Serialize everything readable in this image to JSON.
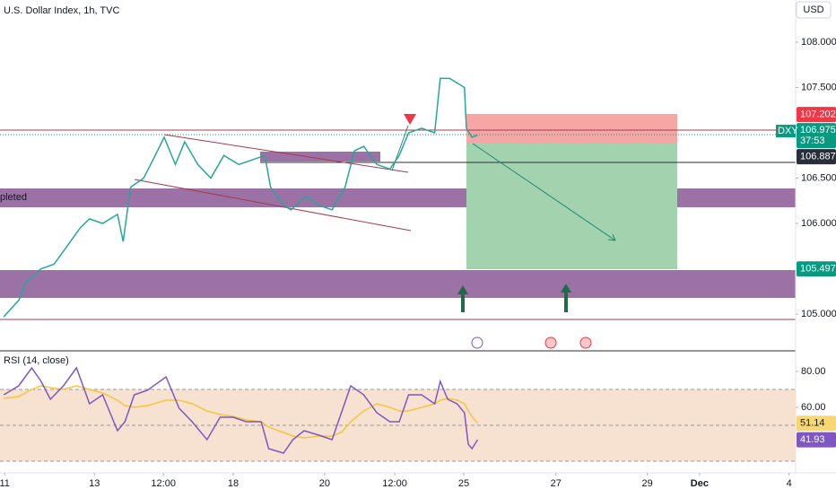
{
  "chart_data": [
    {
      "type": "line",
      "title": "U.S. Dollar Index, 1h, TVC",
      "currency": "USD",
      "color": "#26a69a",
      "x": [
        0,
        8,
        12,
        20,
        27,
        34,
        41,
        46,
        53,
        61,
        64,
        68,
        75,
        80,
        86,
        92,
        97,
        104,
        111,
        118,
        126,
        133,
        140,
        143,
        150,
        154,
        162,
        169,
        176,
        183,
        188,
        193,
        200,
        207,
        212,
        217,
        224,
        231,
        234,
        239,
        243,
        247,
        248,
        251,
        254
      ],
      "values": [
        104.97,
        105.15,
        105.35,
        105.5,
        105.55,
        105.75,
        105.95,
        106.05,
        106.0,
        106.1,
        105.8,
        106.4,
        106.5,
        106.7,
        106.95,
        106.65,
        106.9,
        106.65,
        106.5,
        106.75,
        106.65,
        106.7,
        106.75,
        106.4,
        106.2,
        106.15,
        106.3,
        106.2,
        106.15,
        106.4,
        106.8,
        106.85,
        106.65,
        106.6,
        106.75,
        107.0,
        107.05,
        107.0,
        107.6,
        107.6,
        107.55,
        107.5,
        107.05,
        106.95,
        106.975
      ],
      "xlim": [
        -2,
        424.5
      ],
      "xticks": [
        {
          "value": 0.5,
          "label": "11"
        },
        {
          "value": 48.6,
          "label": "13"
        },
        {
          "value": 85.6,
          "label": "12:00"
        },
        {
          "value": 123,
          "label": "18"
        },
        {
          "value": 172,
          "label": "20"
        },
        {
          "value": 209.6,
          "label": "12:00"
        },
        {
          "value": 246.6,
          "label": "25"
        },
        {
          "value": 296,
          "label": "27"
        },
        {
          "value": 345,
          "label": "29"
        },
        {
          "value": 373,
          "label": "Dec"
        },
        {
          "value": 421,
          "label": "4"
        }
      ],
      "ylim": [
        104.604,
        108.465
      ],
      "yticks": [
        {
          "value": 105,
          "label": "105.000"
        },
        {
          "value": 106,
          "label": "106.000"
        },
        {
          "value": 106.5,
          "label": "106.500"
        },
        {
          "value": 107.5,
          "label": "107.500"
        },
        {
          "value": 108,
          "label": "108.000"
        }
      ],
      "price_tags": [
        {
          "value": 107.202,
          "color": "#f23645"
        },
        {
          "value": 106.975,
          "color": "#089981",
          "name": "DXY",
          "timer": "37:53"
        },
        {
          "value": 106.887,
          "color": "#2a2e39"
        },
        {
          "value": 105.497,
          "color": "#089981"
        }
      ],
      "annotation": "pleted"
    },
    {
      "type": "line",
      "x": [
        0,
        8,
        15,
        20,
        25,
        32,
        39,
        46,
        53,
        61,
        65,
        70,
        77,
        87,
        94,
        101,
        109,
        116,
        123,
        130,
        138,
        142,
        150,
        155,
        161,
        169,
        176,
        181,
        186,
        193,
        200,
        207,
        212,
        217,
        224,
        231,
        234,
        238,
        243,
        247,
        249,
        251,
        254
      ],
      "series": [
        {
          "name": "RSI (14, close)",
          "color": "#7e57c2",
          "values": [
            67,
            72,
            82,
            74.5,
            64.5,
            72,
            82,
            62,
            67,
            47,
            52,
            67,
            69.5,
            77,
            59.5,
            52,
            42,
            54.5,
            54.5,
            52,
            52,
            37,
            34.5,
            42,
            47,
            44.5,
            42,
            57,
            72,
            67,
            57,
            52,
            52,
            67,
            67,
            62,
            74.5,
            64.5,
            62,
            57,
            39.5,
            37,
            41.93
          ]
        },
        {
          "color": "#f3c63f",
          "values": [
            65,
            66,
            70,
            72,
            71,
            70,
            72,
            70,
            68,
            64,
            61,
            60,
            61,
            64,
            64,
            62,
            58,
            56,
            55,
            53,
            52,
            49,
            46,
            44,
            43,
            44,
            44,
            46,
            52,
            58,
            62,
            60,
            58,
            58,
            60,
            62,
            64,
            65,
            64,
            62,
            58,
            55,
            51.14
          ]
        }
      ],
      "xlim": [
        -2,
        424.5
      ],
      "ylim": [
        24.5,
        91
      ],
      "yticks": [
        {
          "value": 60,
          "label": "60.00"
        },
        {
          "value": 80,
          "label": "80.00"
        }
      ],
      "levels": [
        70,
        50,
        30
      ],
      "value_tags": [
        {
          "value": 51.14,
          "color": "#f7d774",
          "text_color": "#131722"
        },
        {
          "value": 41.93,
          "color": "#7e57c2",
          "text_color": "#ffffff"
        }
      ]
    }
  ]
}
